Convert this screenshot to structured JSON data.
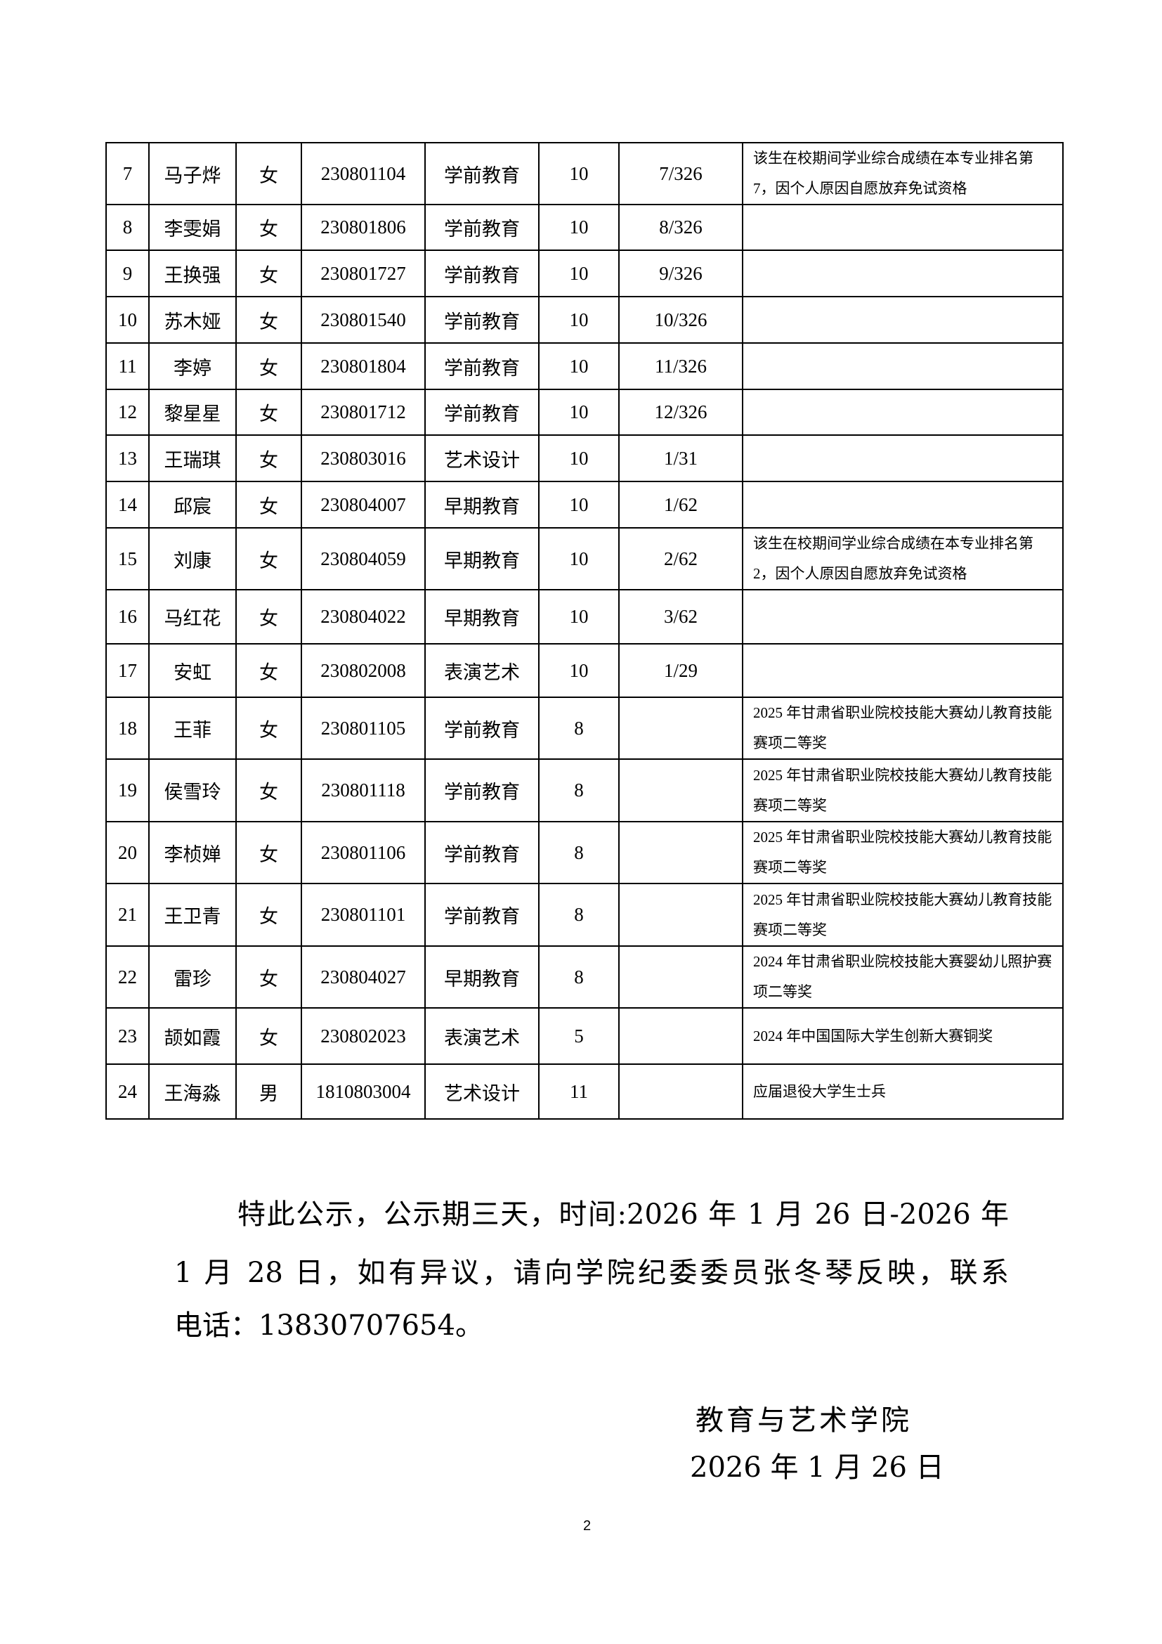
{
  "table": {
    "rows": [
      {
        "no": "7",
        "name": "马子烨",
        "gender": "女",
        "student_id": "230801104",
        "major": "学前教育",
        "points": "10",
        "rank": "7/326",
        "note": "该生在校期间学业综合成绩在本专业排名第7，因个人原因自愿放弃免试资格"
      },
      {
        "no": "8",
        "name": "李雯娟",
        "gender": "女",
        "student_id": "230801806",
        "major": "学前教育",
        "points": "10",
        "rank": "8/326",
        "note": ""
      },
      {
        "no": "9",
        "name": "王换强",
        "gender": "女",
        "student_id": "230801727",
        "major": "学前教育",
        "points": "10",
        "rank": "9/326",
        "note": ""
      },
      {
        "no": "10",
        "name": "苏木娅",
        "gender": "女",
        "student_id": "230801540",
        "major": "学前教育",
        "points": "10",
        "rank": "10/326",
        "note": ""
      },
      {
        "no": "11",
        "name": "李婷",
        "gender": "女",
        "student_id": "230801804",
        "major": "学前教育",
        "points": "10",
        "rank": "11/326",
        "note": ""
      },
      {
        "no": "12",
        "name": "黎星星",
        "gender": "女",
        "student_id": "230801712",
        "major": "学前教育",
        "points": "10",
        "rank": "12/326",
        "note": ""
      },
      {
        "no": "13",
        "name": "王瑞琪",
        "gender": "女",
        "student_id": "230803016",
        "major": "艺术设计",
        "points": "10",
        "rank": "1/31",
        "note": ""
      },
      {
        "no": "14",
        "name": "邱宸",
        "gender": "女",
        "student_id": "230804007",
        "major": "早期教育",
        "points": "10",
        "rank": "1/62",
        "note": ""
      },
      {
        "no": "15",
        "name": "刘康",
        "gender": "女",
        "student_id": "230804059",
        "major": "早期教育",
        "points": "10",
        "rank": "2/62",
        "note": "该生在校期间学业综合成绩在本专业排名第2，因个人原因自愿放弃免试资格"
      },
      {
        "no": "16",
        "name": "马红花",
        "gender": "女",
        "student_id": "230804022",
        "major": "早期教育",
        "points": "10",
        "rank": "3/62",
        "note": ""
      },
      {
        "no": "17",
        "name": "安虹",
        "gender": "女",
        "student_id": "230802008",
        "major": "表演艺术",
        "points": "10",
        "rank": "1/29",
        "note": ""
      },
      {
        "no": "18",
        "name": "王菲",
        "gender": "女",
        "student_id": "230801105",
        "major": "学前教育",
        "points": "8",
        "rank": "",
        "note": "2025 年甘肃省职业院校技能大赛幼儿教育技能赛项二等奖"
      },
      {
        "no": "19",
        "name": "侯雪玲",
        "gender": "女",
        "student_id": "230801118",
        "major": "学前教育",
        "points": "8",
        "rank": "",
        "note": "2025 年甘肃省职业院校技能大赛幼儿教育技能赛项二等奖"
      },
      {
        "no": "20",
        "name": "李桢婵",
        "gender": "女",
        "student_id": "230801106",
        "major": "学前教育",
        "points": "8",
        "rank": "",
        "note": "2025 年甘肃省职业院校技能大赛幼儿教育技能赛项二等奖"
      },
      {
        "no": "21",
        "name": "王卫青",
        "gender": "女",
        "student_id": "230801101",
        "major": "学前教育",
        "points": "8",
        "rank": "",
        "note": "2025 年甘肃省职业院校技能大赛幼儿教育技能赛项二等奖"
      },
      {
        "no": "22",
        "name": "雷珍",
        "gender": "女",
        "student_id": "230804027",
        "major": "早期教育",
        "points": "8",
        "rank": "",
        "note": "2024 年甘肃省职业院校技能大赛婴幼儿照护赛项二等奖"
      },
      {
        "no": "23",
        "name": "颉如霞",
        "gender": "女",
        "student_id": "230802023",
        "major": "表演艺术",
        "points": "5",
        "rank": "",
        "note": "2024 年中国国际大学生创新大赛铜奖"
      },
      {
        "no": "24",
        "name": "王海淼",
        "gender": "男",
        "student_id": "1810803004",
        "major": "艺术设计",
        "points": "11",
        "rank": "",
        "note": "应届退役大学生士兵"
      }
    ]
  },
  "notice": {
    "lines": [
      "特此公示，公示期三天，时间:2026 年 1 月 26 日-2026 年",
      "1 月 28 日，如有异议，请向学院纪委委员张冬琴反映，联系",
      "电话：13830707654。"
    ]
  },
  "signature": {
    "organization": "教育与艺术学院",
    "date": "2026 年 1 月 26 日"
  },
  "page_number": "2"
}
